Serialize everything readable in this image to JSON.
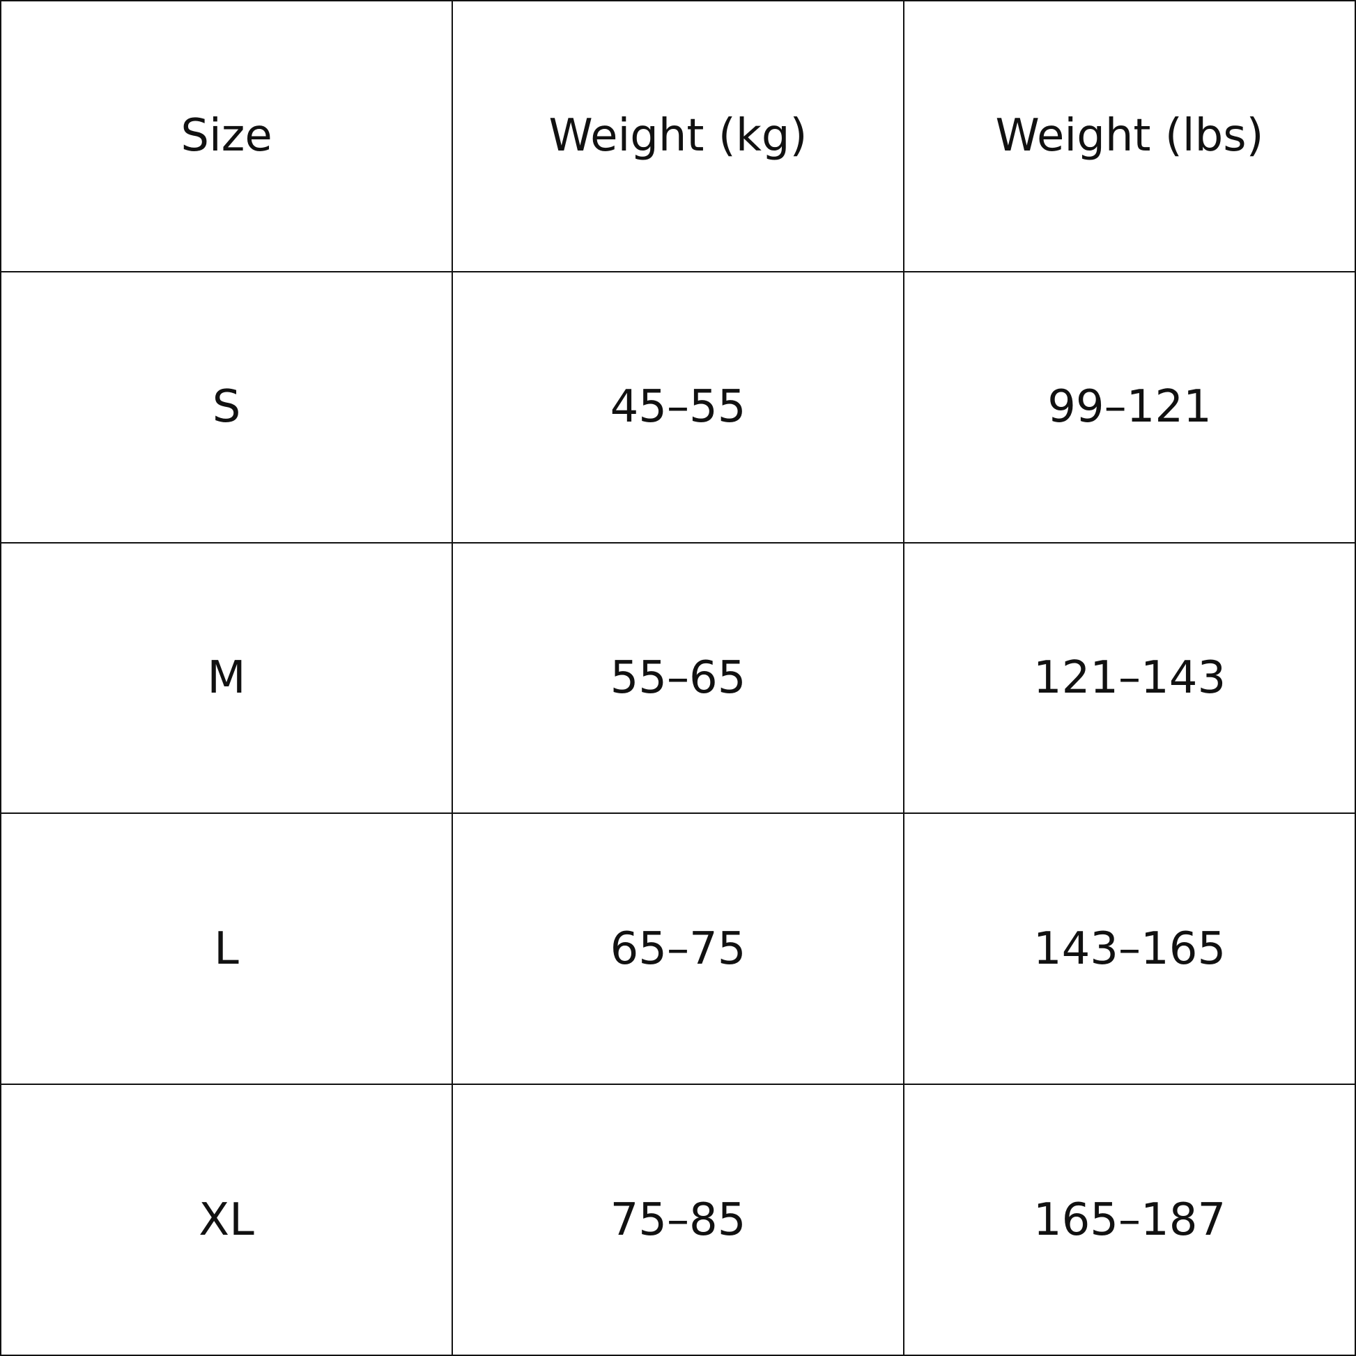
{
  "table": {
    "header": [
      "Size",
      "Weight (kg)",
      "Weight (lbs)"
    ],
    "rows": [
      [
        "S",
        "45–55",
        "99–121"
      ],
      [
        "M",
        "55–65",
        "121–143"
      ],
      [
        "L",
        "65–75",
        "143–165"
      ],
      [
        "XL",
        "75–85",
        "165–187"
      ]
    ]
  }
}
